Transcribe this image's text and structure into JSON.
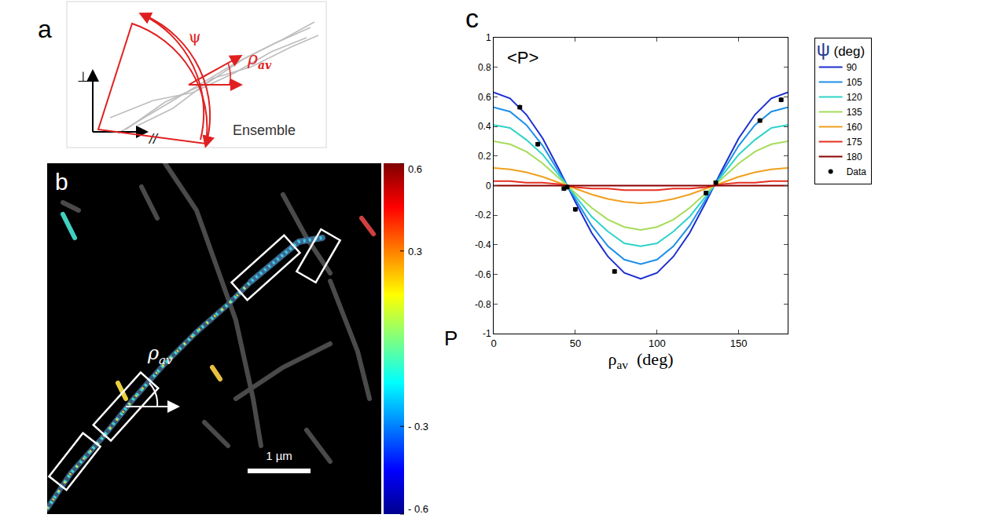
{
  "panels": {
    "a": {
      "letter": "a",
      "psi": "ψ",
      "rho": "ρ",
      "rho_sub": "av",
      "perp": "⊥",
      "parallel": "//",
      "label": "Ensemble"
    },
    "b": {
      "letter": "b",
      "rho": "ρ",
      "rho_sub": "av",
      "scale_bar": "1 µm",
      "colorbar": {
        "title": "P",
        "range": [
          -0.6,
          0.6
        ],
        "ticks": [
          0.6,
          0.3,
          {
            "value": -0.3,
            "label": "- 0.3"
          },
          {
            "value": -0.6,
            "label": "- 0.6"
          }
        ]
      }
    }
  },
  "chart_data": {
    "type": "line",
    "letter": "c",
    "title": "<P>",
    "xlabel": {
      "symbol": "ρ",
      "subscript": "av",
      "unit": "(deg)"
    },
    "legend_title": {
      "symbol": "ψ",
      "unit": "(deg)"
    },
    "x": [
      0,
      10,
      20,
      30,
      40,
      50,
      60,
      70,
      80,
      90,
      100,
      110,
      120,
      130,
      140,
      150,
      160,
      170,
      180
    ],
    "xlim": [
      0,
      180
    ],
    "xticks": [
      0,
      50,
      100,
      150
    ],
    "ylim": [
      -1,
      1
    ],
    "yticks": [
      -1,
      -0.8,
      -0.6,
      -0.4,
      -0.2,
      0,
      0.2,
      0.4,
      0.6,
      0.8,
      1
    ],
    "grid": false,
    "legend": "right",
    "series": [
      {
        "name": "90",
        "color": "#1c2fd0",
        "values": [
          0.63,
          0.59,
          0.48,
          0.32,
          0.11,
          -0.11,
          -0.32,
          -0.48,
          -0.59,
          -0.63,
          -0.59,
          -0.48,
          -0.32,
          -0.11,
          0.11,
          0.32,
          0.48,
          0.59,
          0.63
        ]
      },
      {
        "name": "105",
        "color": "#1e8fe8",
        "values": [
          0.53,
          0.5,
          0.41,
          0.27,
          0.09,
          -0.09,
          -0.27,
          -0.41,
          -0.5,
          -0.53,
          -0.5,
          -0.41,
          -0.27,
          -0.09,
          0.09,
          0.27,
          0.41,
          0.5,
          0.53
        ]
      },
      {
        "name": "120",
        "color": "#2fd3c8",
        "values": [
          0.41,
          0.39,
          0.31,
          0.21,
          0.07,
          -0.07,
          -0.21,
          -0.31,
          -0.39,
          -0.41,
          -0.39,
          -0.31,
          -0.21,
          -0.07,
          0.07,
          0.21,
          0.31,
          0.39,
          0.41
        ]
      },
      {
        "name": "135",
        "color": "#a6dc5a",
        "values": [
          0.3,
          0.28,
          0.23,
          0.15,
          0.05,
          -0.05,
          -0.15,
          -0.23,
          -0.28,
          -0.3,
          -0.28,
          -0.23,
          -0.15,
          -0.05,
          0.05,
          0.15,
          0.23,
          0.28,
          0.3
        ]
      },
      {
        "name": "160",
        "color": "#f0a020",
        "values": [
          0.12,
          0.11,
          0.09,
          0.06,
          0.02,
          -0.02,
          -0.06,
          -0.09,
          -0.11,
          -0.12,
          -0.11,
          -0.09,
          -0.06,
          -0.02,
          0.02,
          0.06,
          0.09,
          0.11,
          0.12
        ]
      },
      {
        "name": "175",
        "color": "#e63020",
        "values": [
          0.03,
          0.03,
          0.02,
          0.02,
          0.01,
          -0.01,
          -0.02,
          -0.02,
          -0.03,
          -0.03,
          -0.03,
          -0.02,
          -0.02,
          -0.01,
          0.01,
          0.02,
          0.02,
          0.03,
          0.03
        ]
      },
      {
        "name": "180",
        "color": "#8b0000",
        "values": [
          0,
          0,
          0,
          0,
          0,
          0,
          0,
          0,
          0,
          0,
          0,
          0,
          0,
          0,
          0,
          0,
          0,
          0,
          0
        ]
      },
      {
        "name": "Data",
        "type": "scatter",
        "marker": "circle",
        "color": "#000000",
        "x": [
          16,
          27,
          43,
          45,
          50,
          74,
          130,
          136,
          163,
          176
        ],
        "values": [
          0.53,
          0.28,
          -0.02,
          -0.01,
          -0.16,
          -0.58,
          -0.05,
          0.02,
          0.44,
          0.58
        ],
        "errors": [
          0.01,
          0.01,
          0.01,
          0.01,
          0.01,
          0.01,
          0.01,
          0.01,
          0.01,
          0.01
        ]
      }
    ]
  }
}
